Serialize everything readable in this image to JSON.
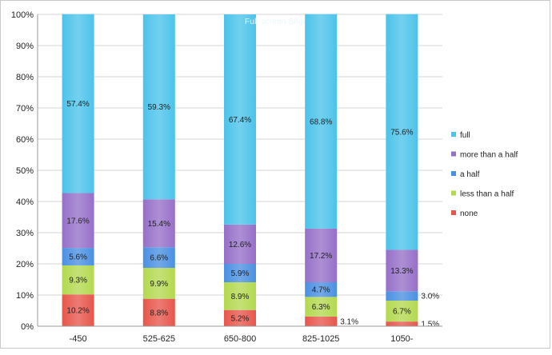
{
  "watermark": "Full-screen Snip",
  "chart_data": {
    "type": "bar",
    "stacked": true,
    "percent": true,
    "categories": [
      "-450",
      "525-625",
      "650-800",
      "825-1025",
      "1050-"
    ],
    "ylim": [
      0,
      100
    ],
    "yticks": [
      "0%",
      "10%",
      "20%",
      "30%",
      "40%",
      "50%",
      "60%",
      "70%",
      "80%",
      "90%",
      "100%"
    ],
    "grid": true,
    "legend": "right",
    "series": [
      {
        "name": "none",
        "color": "#e7564b",
        "values": [
          10.2,
          8.8,
          5.2,
          3.1,
          1.5
        ],
        "labels": [
          "10.2%",
          "8.8%",
          "5.2%",
          "3.1%",
          "1.5%"
        ]
      },
      {
        "name": "less than a half",
        "color": "#b3d94f",
        "values": [
          9.3,
          9.9,
          8.9,
          6.3,
          6.7
        ],
        "labels": [
          "9.3%",
          "9.9%",
          "8.9%",
          "6.3%",
          "6.7%"
        ]
      },
      {
        "name": "a half",
        "color": "#4a90e2",
        "values": [
          5.6,
          6.6,
          5.9,
          4.7,
          3.0
        ],
        "labels": [
          "5.6%",
          "6.6%",
          "5.9%",
          "4.7%",
          "3.0%"
        ]
      },
      {
        "name": "more than a half",
        "color": "#9670c8",
        "values": [
          17.6,
          15.4,
          12.6,
          17.2,
          13.3
        ],
        "labels": [
          "17.6%",
          "15.4%",
          "12.6%",
          "17.2%",
          "13.3%"
        ]
      },
      {
        "name": "full",
        "color": "#4cc3ea",
        "values": [
          57.4,
          59.3,
          67.4,
          68.8,
          75.6
        ],
        "labels": [
          "57.4%",
          "59.3%",
          "67.4%",
          "68.8%",
          "75.6%"
        ]
      }
    ],
    "legend_order": [
      "full",
      "more than a half",
      "a half",
      "less than a half",
      "none"
    ]
  }
}
